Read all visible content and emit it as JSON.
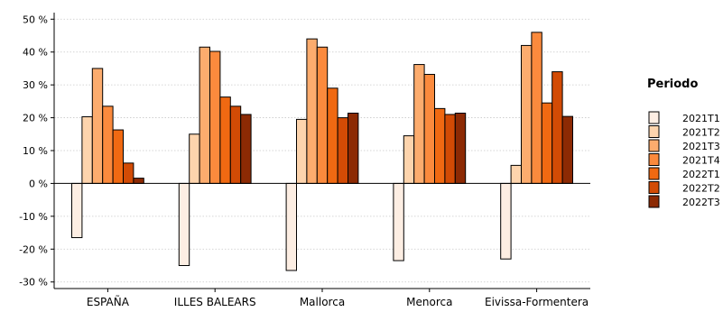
{
  "chart_data": {
    "type": "bar",
    "categories": [
      "ESPAÑA",
      "ILLES BALEARS",
      "Mallorca",
      "Menorca",
      "Eivissa-Formentera"
    ],
    "series": [
      {
        "name": "2021T1",
        "color": "#fdeee3",
        "values": [
          -16.5,
          -25,
          -26.5,
          -23.5,
          -23
        ]
      },
      {
        "name": "2021T2",
        "color": "#fdd4ad",
        "values": [
          20.3,
          15,
          19.5,
          14.5,
          5.5
        ]
      },
      {
        "name": "2021T3",
        "color": "#fcac6e",
        "values": [
          35,
          41.5,
          44,
          36.2,
          42
        ]
      },
      {
        "name": "2021T4",
        "color": "#fb8a3d",
        "values": [
          23.5,
          40.2,
          41.5,
          33.2,
          46
        ]
      },
      {
        "name": "2022T1",
        "color": "#f06912",
        "values": [
          16.3,
          26.3,
          29,
          22.8,
          24.5
        ]
      },
      {
        "name": "2022T2",
        "color": "#d24b05",
        "values": [
          6.2,
          23.5,
          20,
          21,
          34
        ]
      },
      {
        "name": "2022T3",
        "color": "#8c2a04",
        "values": [
          1.6,
          21,
          21.4,
          21.4,
          20.4
        ]
      }
    ],
    "yticks": [
      "-30 %",
      "-20 %",
      "-10 %",
      "0 %",
      "10 %",
      "20 %",
      "30 %",
      "40 %",
      "50 %"
    ],
    "ylim": [
      -32,
      52
    ],
    "legend_title": "Periodo",
    "legend_position": "right",
    "grid": true
  }
}
